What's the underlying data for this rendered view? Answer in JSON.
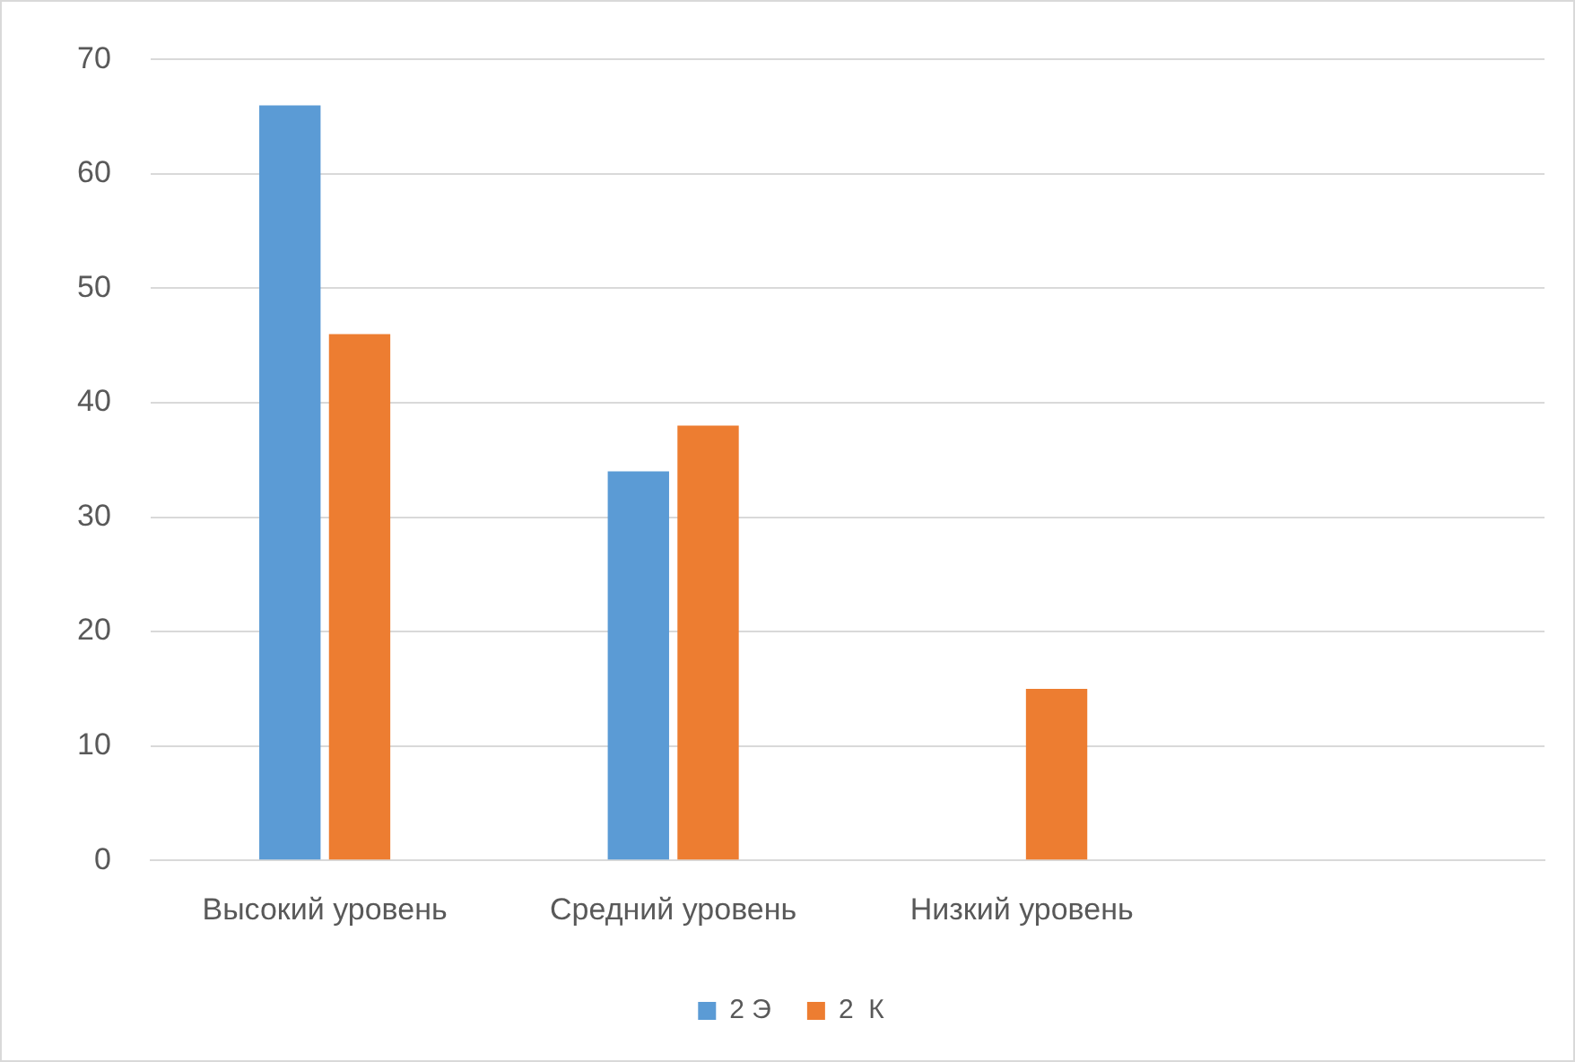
{
  "chart_data": {
    "type": "bar",
    "categories": [
      "Высокий уровень",
      "Средний уровень",
      "Низкий уровень",
      null
    ],
    "series": [
      {
        "name": "2 Э",
        "color": "#5b9bd5",
        "values": [
          66,
          34,
          0,
          null
        ]
      },
      {
        "name": "2  К",
        "color": "#ed7d31",
        "values": [
          46,
          38,
          15,
          null
        ]
      }
    ],
    "ylim": [
      0,
      70
    ],
    "yticks": [
      0,
      10,
      20,
      30,
      40,
      50,
      60,
      70
    ],
    "grid": "y",
    "legend": "bottom"
  }
}
